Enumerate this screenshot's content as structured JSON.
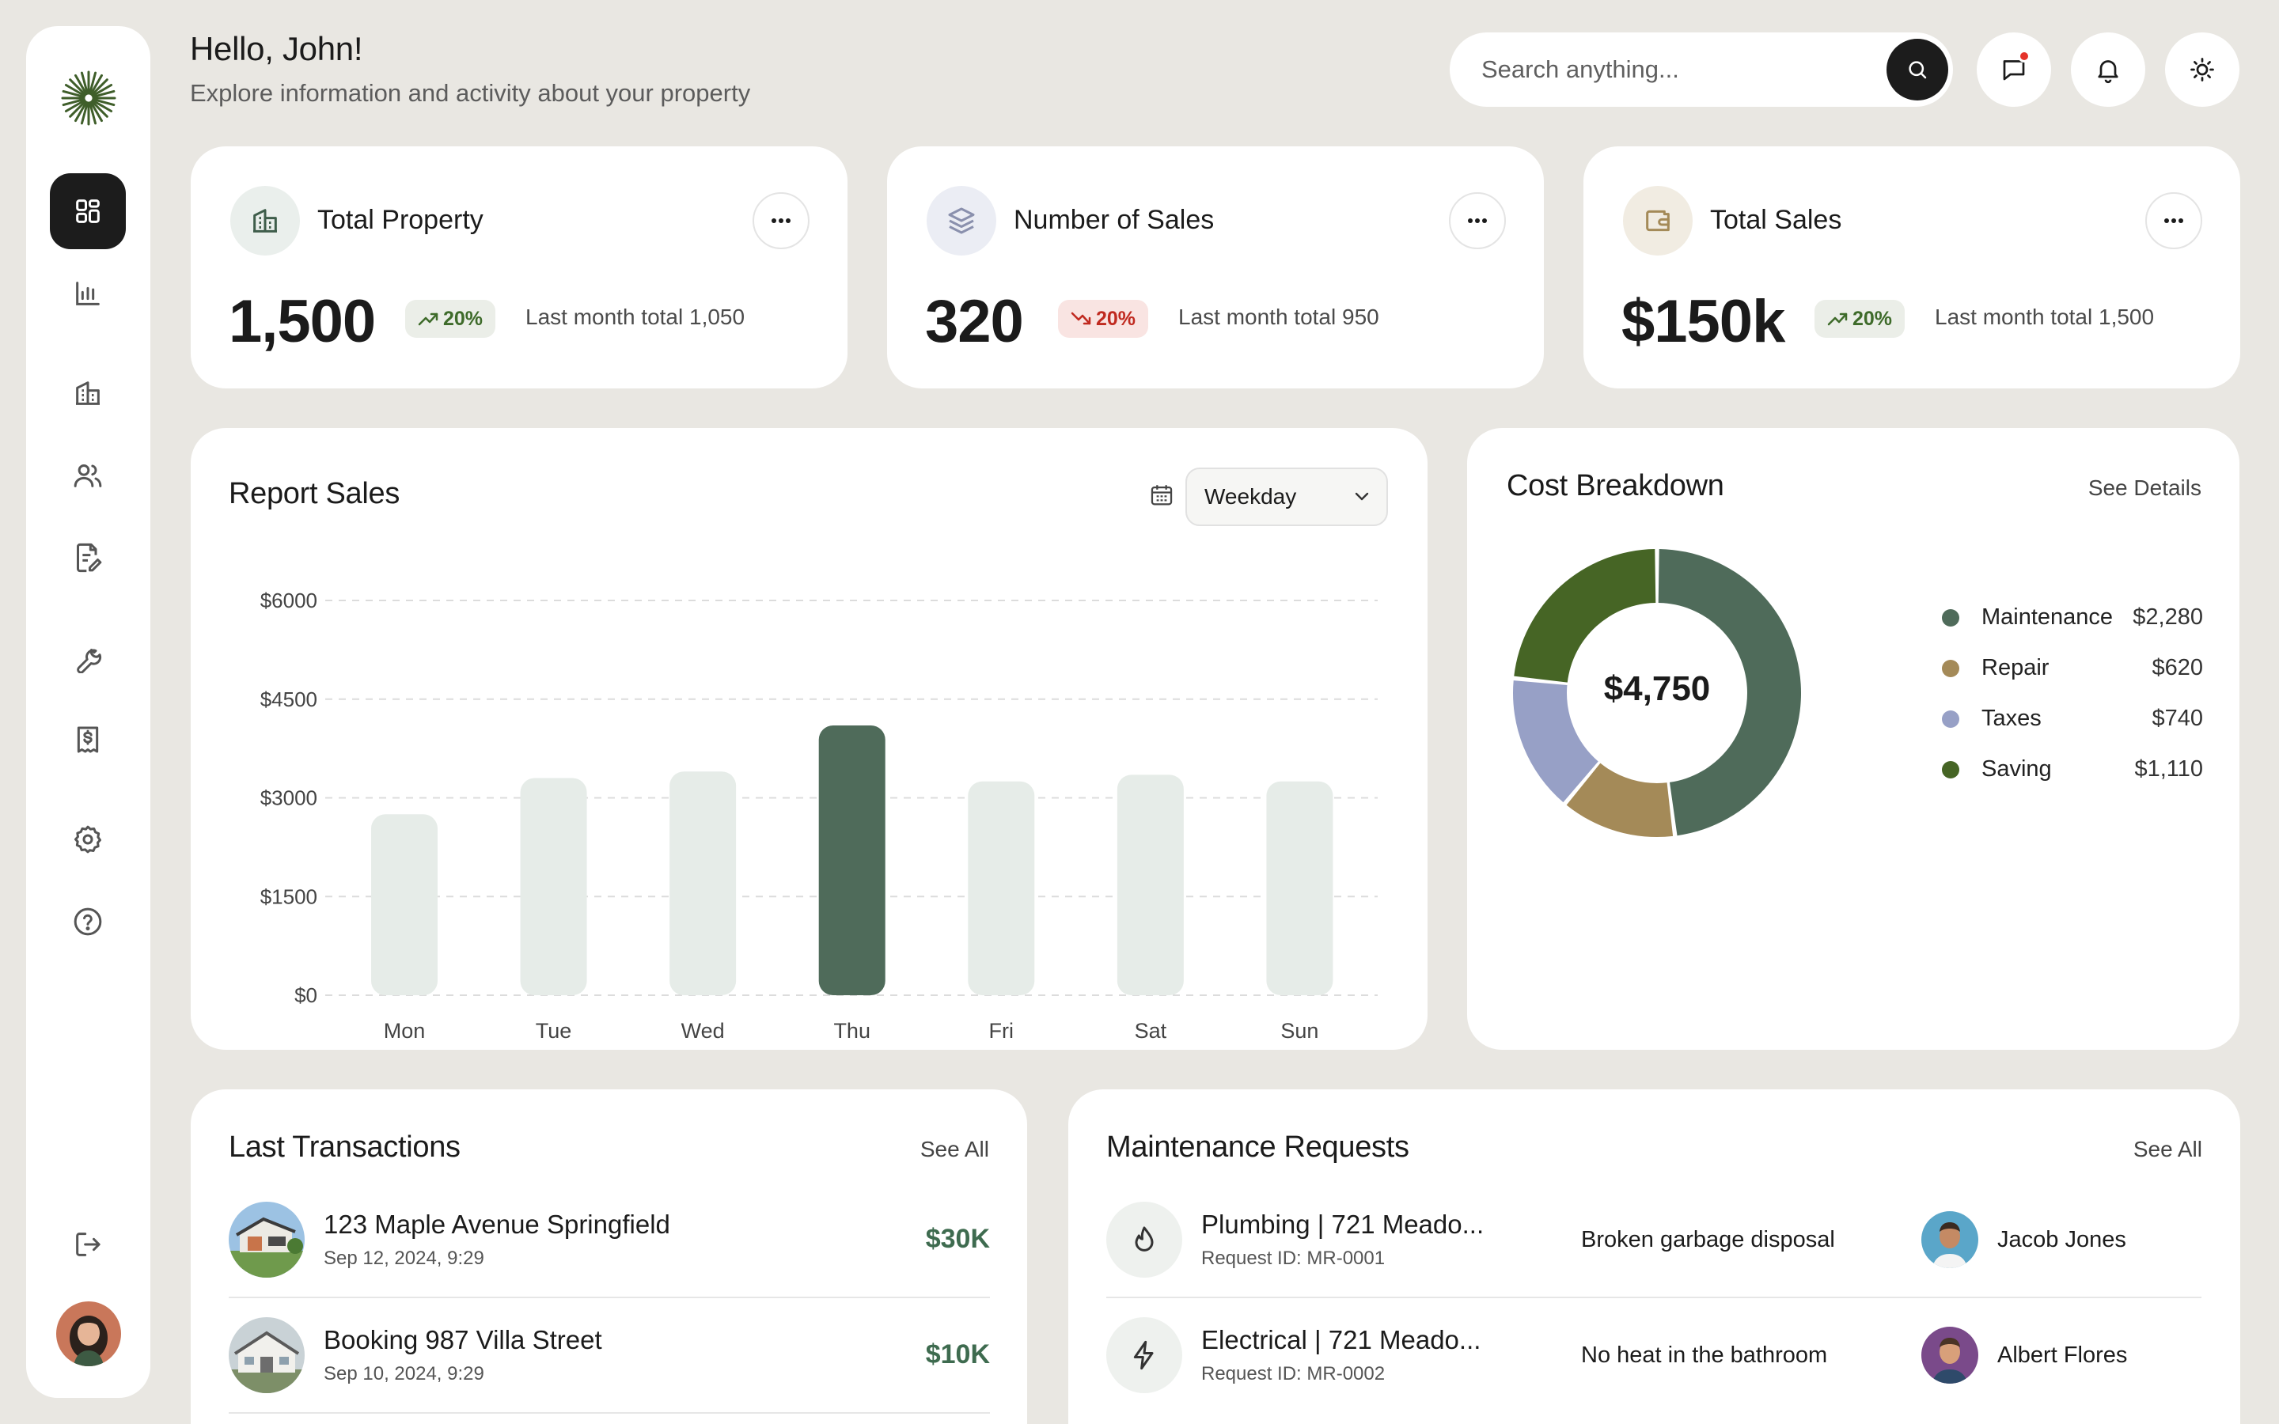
{
  "header": {
    "greeting": "Hello, John!",
    "subtitle": "Explore information and activity about your property",
    "search_placeholder": "Search anything..."
  },
  "icons": {
    "logo": "sunburst-logo",
    "nav": [
      "dashboard-grid-icon",
      "bar-chart-icon",
      "building-icon",
      "users-icon",
      "document-edit-icon",
      "wrench-icon",
      "receipt-dollar-icon",
      "gear-icon",
      "help-circle-icon"
    ],
    "logout": "logout-icon",
    "header": [
      "search-icon",
      "chat-icon",
      "bell-icon",
      "sun-icon"
    ]
  },
  "colors": {
    "accent_dark": "#4f6b5a",
    "bar_light": "#e6ece8",
    "positive": "#3e6b2a",
    "negative": "#c02a20",
    "notification_dot": "#e5332a"
  },
  "stats": [
    {
      "title": "Total Property",
      "value": "1,500",
      "change": "20%",
      "trend": "up",
      "note": "Last month total 1,050",
      "icon": "building-icon"
    },
    {
      "title": "Number of Sales",
      "value": "320",
      "change": "20%",
      "trend": "down",
      "note": "Last month total 950",
      "icon": "layers-icon"
    },
    {
      "title": "Total Sales",
      "value": "$150k",
      "change": "20%",
      "trend": "up",
      "note": "Last month total 1,500",
      "icon": "wallet-icon"
    }
  ],
  "report": {
    "title": "Report Sales",
    "filter": "Weekday"
  },
  "chart_data": {
    "type": "bar",
    "categories": [
      "Mon",
      "Tue",
      "Wed",
      "Thu",
      "Fri",
      "Sat",
      "Sun"
    ],
    "values": [
      2750,
      3300,
      3400,
      4100,
      3250,
      3350,
      3250
    ],
    "highlight": "Thu",
    "ylim": [
      0,
      6000
    ],
    "yticks": [
      "$0",
      "$1500",
      "$3000",
      "$4500",
      "$6000"
    ],
    "ytick_values": [
      0,
      1500,
      3000,
      4500,
      6000
    ],
    "grid": true
  },
  "cost": {
    "title": "Cost Breakdown",
    "link": "See Details",
    "total": "$4,750",
    "items": [
      {
        "label": "Maintenance",
        "value": "$2,280",
        "amount": 2280,
        "color": "#4f6b5a"
      },
      {
        "label": "Repair",
        "value": "$620",
        "amount": 620,
        "color": "#a48a58"
      },
      {
        "label": "Taxes",
        "value": "$740",
        "amount": 740,
        "color": "#97a0c6"
      },
      {
        "label": "Saving",
        "value": "$1,110",
        "amount": 1110,
        "color": "#466525"
      }
    ]
  },
  "transactions": {
    "title": "Last Transactions",
    "link": "See All",
    "items": [
      {
        "name": "123 Maple Avenue Springfield",
        "date": "Sep 12, 2024, 9:29",
        "amount": "$30K"
      },
      {
        "name": "Booking 987 Villa Street",
        "date": "Sep 10, 2024, 9:29",
        "amount": "$10K"
      }
    ]
  },
  "maintenance": {
    "title": "Maintenance Requests",
    "link": "See All",
    "items": [
      {
        "title": "Plumbing | 721 Meado...",
        "id": "Request ID: MR-0001",
        "issue": "Broken garbage disposal",
        "person": "Jacob Jones",
        "icon": "water-drop-icon"
      },
      {
        "title": "Electrical | 721 Meado...",
        "id": "Request ID: MR-0002",
        "issue": "No heat in the bathroom",
        "person": "Albert Flores",
        "icon": "lightning-icon"
      }
    ]
  }
}
